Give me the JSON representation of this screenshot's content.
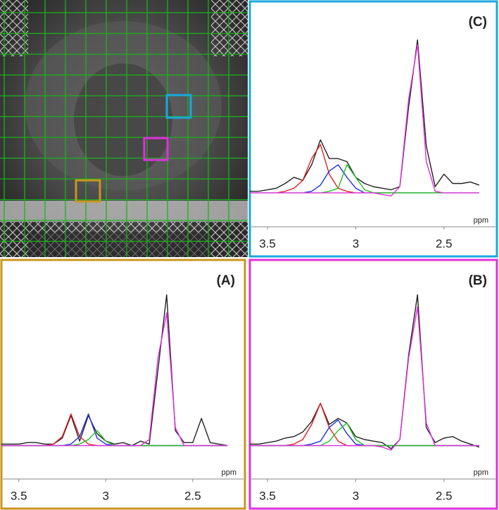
{
  "chart_data": [
    {
      "type": "line",
      "title": "(A)",
      "x_label": "ppm",
      "x": [
        3.6,
        3.55,
        3.5,
        3.45,
        3.4,
        3.35,
        3.3,
        3.25,
        3.2,
        3.15,
        3.1,
        3.05,
        3.0,
        2.95,
        2.9,
        2.85,
        2.8,
        2.75,
        2.7,
        2.65,
        2.6,
        2.55,
        2.5,
        2.45,
        2.4,
        2.35,
        2.3
      ],
      "xlim": [
        3.6,
        2.2
      ],
      "xticks": [
        3.5,
        3,
        2.5
      ],
      "ylim": [
        -10,
        110
      ],
      "series": [
        {
          "color": "#222222",
          "values": [
            1,
            1,
            1,
            2,
            2,
            1,
            1,
            5,
            20,
            3,
            20,
            8,
            3,
            1,
            2,
            0,
            3,
            1,
            50,
            100,
            10,
            2,
            2,
            18,
            2,
            1,
            0
          ]
        },
        {
          "color": "#e02020",
          "values": [
            0,
            0,
            0,
            0,
            0,
            0,
            1,
            6,
            21,
            6,
            1,
            0,
            0,
            0,
            0,
            0,
            0,
            0,
            0,
            0,
            0,
            0,
            0,
            0,
            0,
            0,
            0
          ]
        },
        {
          "color": "#2030e0",
          "values": [
            0,
            0,
            0,
            0,
            0,
            0,
            0,
            0,
            1,
            6,
            21,
            5,
            1,
            0,
            0,
            0,
            0,
            0,
            0,
            0,
            0,
            0,
            0,
            0,
            0,
            0,
            0
          ]
        },
        {
          "color": "#20c020",
          "values": [
            0,
            0,
            0,
            0,
            0,
            0,
            0,
            0,
            0,
            1,
            4,
            10,
            3,
            0,
            0,
            0,
            0,
            0,
            0,
            0,
            0,
            0,
            0,
            0,
            0,
            0,
            0
          ]
        },
        {
          "color": "#e030e0",
          "values": [
            0,
            0,
            0,
            0,
            0,
            0,
            0,
            0,
            0,
            0,
            0,
            0,
            0,
            0,
            0,
            0,
            0,
            4,
            58,
            88,
            12,
            0,
            0,
            0,
            0,
            0,
            0
          ]
        }
      ]
    },
    {
      "type": "line",
      "title": "(B)",
      "x_label": "ppm",
      "x": [
        3.6,
        3.55,
        3.5,
        3.45,
        3.4,
        3.35,
        3.3,
        3.25,
        3.2,
        3.15,
        3.1,
        3.05,
        3.0,
        2.95,
        2.9,
        2.85,
        2.8,
        2.75,
        2.7,
        2.65,
        2.6,
        2.55,
        2.5,
        2.45,
        2.4,
        2.35,
        2.3
      ],
      "xlim": [
        3.6,
        2.2
      ],
      "xticks": [
        3.5,
        3,
        2.5
      ],
      "ylim": [
        -10,
        110
      ],
      "series": [
        {
          "color": "#222222",
          "values": [
            1,
            1,
            2,
            3,
            5,
            6,
            9,
            16,
            28,
            14,
            18,
            15,
            6,
            4,
            3,
            2,
            -2,
            4,
            60,
            100,
            12,
            2,
            5,
            6,
            3,
            1,
            -1
          ]
        },
        {
          "color": "#e02020",
          "values": [
            0,
            0,
            0,
            0,
            0,
            1,
            4,
            14,
            28,
            12,
            3,
            0,
            0,
            0,
            0,
            0,
            0,
            0,
            0,
            0,
            0,
            0,
            0,
            0,
            0,
            0,
            0
          ]
        },
        {
          "color": "#2030e0",
          "values": [
            0,
            0,
            0,
            0,
            0,
            0,
            0,
            1,
            3,
            12,
            17,
            8,
            1,
            0,
            0,
            0,
            0,
            0,
            0,
            0,
            0,
            0,
            0,
            0,
            0,
            0,
            0
          ]
        },
        {
          "color": "#20c020",
          "values": [
            0,
            0,
            0,
            0,
            0,
            0,
            0,
            0,
            0,
            3,
            10,
            15,
            4,
            0,
            0,
            0,
            0,
            0,
            0,
            0,
            0,
            0,
            0,
            0,
            0,
            0,
            0
          ]
        },
        {
          "color": "#e030e0",
          "values": [
            0,
            0,
            0,
            0,
            0,
            0,
            0,
            0,
            0,
            0,
            0,
            0,
            0,
            0,
            0,
            -1,
            -3,
            4,
            58,
            92,
            15,
            0,
            0,
            0,
            0,
            0,
            0
          ]
        }
      ]
    },
    {
      "type": "line",
      "title": "(C)",
      "x_label": "ppm",
      "x": [
        3.6,
        3.55,
        3.5,
        3.45,
        3.4,
        3.35,
        3.3,
        3.25,
        3.2,
        3.15,
        3.1,
        3.05,
        3.0,
        2.95,
        2.9,
        2.85,
        2.8,
        2.75,
        2.7,
        2.65,
        2.6,
        2.55,
        2.5,
        2.45,
        2.4,
        2.35,
        2.3
      ],
      "xlim": [
        3.6,
        2.2
      ],
      "xticks": [
        3.5,
        3,
        2.5
      ],
      "ylim": [
        -10,
        110
      ],
      "series": [
        {
          "color": "#222222",
          "values": [
            1,
            1,
            2,
            3,
            6,
            10,
            8,
            18,
            34,
            22,
            22,
            20,
            10,
            6,
            4,
            3,
            2,
            4,
            55,
            98,
            30,
            4,
            12,
            6,
            6,
            7,
            5
          ]
        },
        {
          "color": "#e02020",
          "values": [
            0,
            0,
            0,
            0,
            1,
            3,
            8,
            22,
            31,
            12,
            3,
            1,
            0,
            0,
            0,
            0,
            0,
            0,
            0,
            0,
            0,
            0,
            0,
            0,
            0,
            0,
            0
          ]
        },
        {
          "color": "#2030e0",
          "values": [
            0,
            0,
            0,
            0,
            0,
            0,
            0,
            1,
            5,
            14,
            18,
            10,
            3,
            0,
            0,
            0,
            0,
            0,
            0,
            0,
            0,
            0,
            0,
            0,
            0,
            0,
            0
          ]
        },
        {
          "color": "#20c020",
          "values": [
            0,
            0,
            0,
            0,
            0,
            0,
            0,
            0,
            0,
            1,
            3,
            18,
            10,
            2,
            0,
            0,
            0,
            0,
            0,
            0,
            0,
            0,
            0,
            0,
            0,
            0,
            0
          ]
        },
        {
          "color": "#e030e0",
          "values": [
            0,
            0,
            0,
            0,
            0,
            0,
            0,
            0,
            0,
            0,
            0,
            0,
            0,
            0,
            0,
            -1,
            -2,
            4,
            60,
            95,
            20,
            1,
            0,
            0,
            0,
            0,
            0
          ]
        }
      ]
    }
  ]
}
